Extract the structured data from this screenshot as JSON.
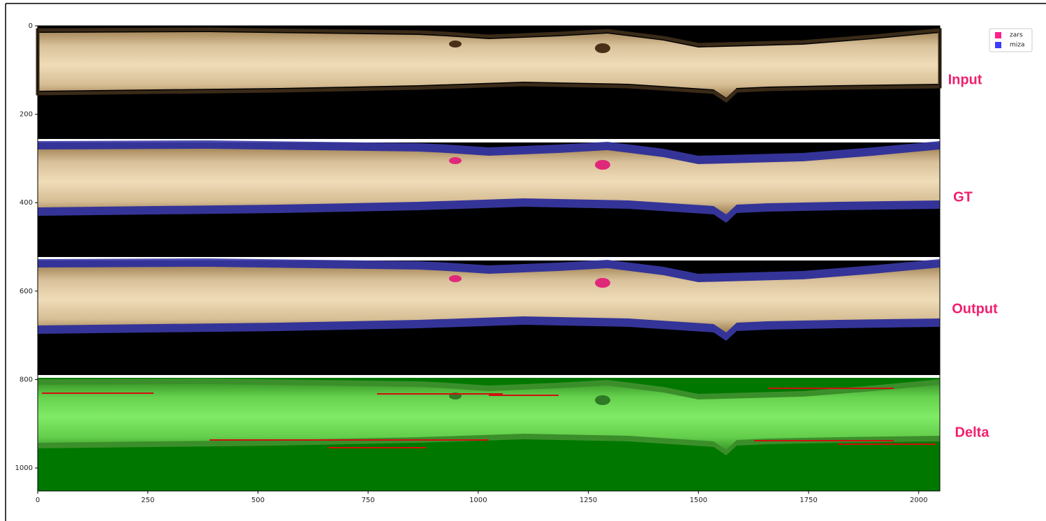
{
  "chart_data": {
    "type": "image",
    "xlim": [
      0,
      2048
    ],
    "ylim": [
      1052,
      0
    ],
    "xticks": [
      0,
      250,
      500,
      750,
      1000,
      1250,
      1500,
      1750,
      2000
    ],
    "yticks": [
      0,
      200,
      400,
      600,
      800,
      1000
    ],
    "legend": [
      {
        "name": "zars",
        "color": "#ff1e8c"
      },
      {
        "name": "miza",
        "color": "#3c3cff"
      }
    ],
    "panel_labels": [
      "Input",
      "GT",
      "Output",
      "Delta"
    ]
  }
}
